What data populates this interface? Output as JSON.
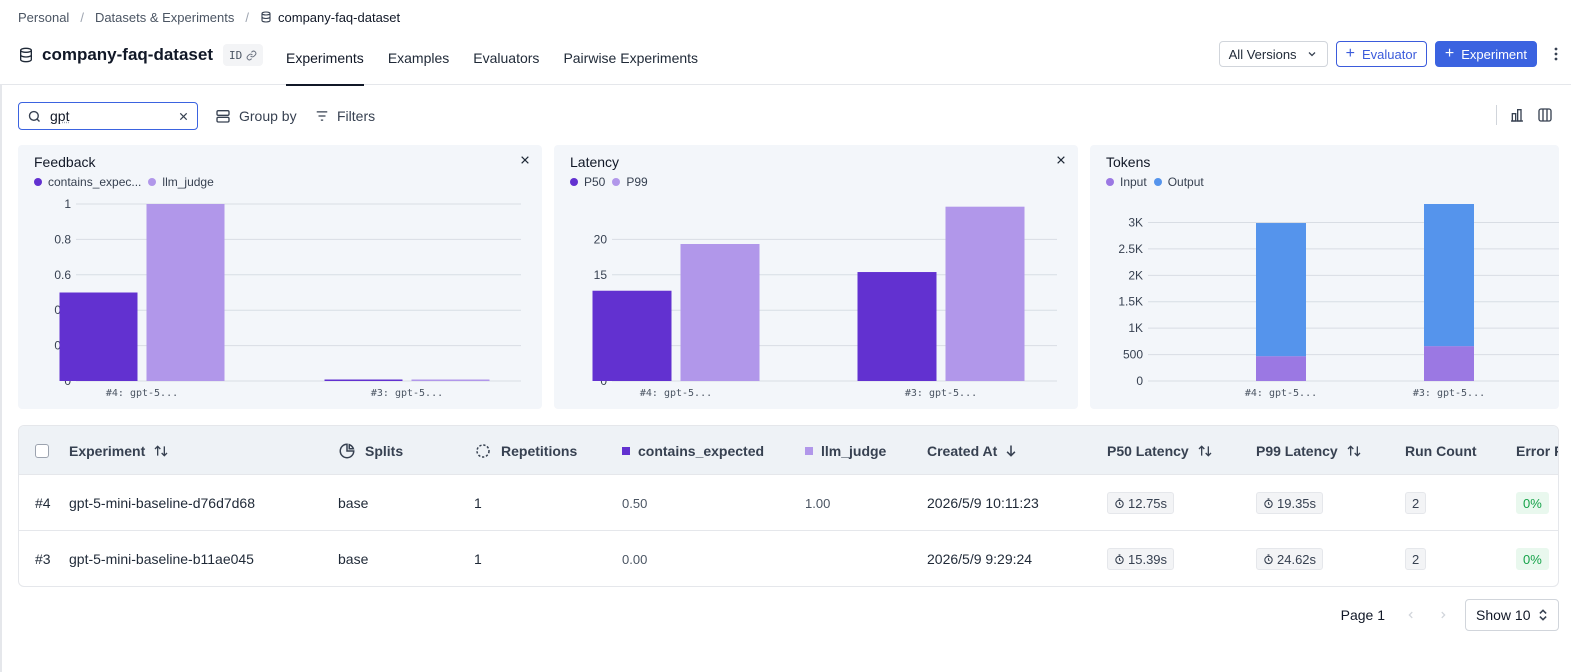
{
  "breadcrumb": {
    "items": [
      "Personal",
      "Datasets & Experiments"
    ],
    "current": "company-faq-dataset"
  },
  "header": {
    "dataset_name": "company-faq-dataset",
    "id_badge": "ID",
    "tabs": [
      "Experiments",
      "Examples",
      "Evaluators",
      "Pairwise Experiments"
    ],
    "active_tab": "Experiments",
    "versions_label": "All Versions",
    "evaluator_label": "Evaluator",
    "experiment_label": "Experiment"
  },
  "toolbar": {
    "search_value": "gpt",
    "group_by_label": "Group by",
    "filters_label": "Filters"
  },
  "colors": {
    "primary": "#3b63e0",
    "series_dark": "#6231d0",
    "series_light": "#b197ea",
    "input_purple": "#9b78e3",
    "output_blue": "#5594ec"
  },
  "chart_data": [
    {
      "type": "bar",
      "title": "Feedback",
      "categories": [
        "#4: gpt-5...",
        "#3: gpt-5..."
      ],
      "series": [
        {
          "name": "contains_expec...",
          "values": [
            0.5,
            0
          ]
        },
        {
          "name": "llm_judge",
          "values": [
            1.0,
            0
          ]
        }
      ],
      "ylim": [
        0,
        1
      ],
      "yticks": [
        0,
        0.2,
        0.4,
        0.6,
        0.8,
        1
      ],
      "ytick_labels": [
        "0",
        "0.2",
        "0.4",
        "0.6",
        "0.8",
        "1"
      ],
      "grid": true,
      "legend": "top-left"
    },
    {
      "type": "bar",
      "title": "Latency",
      "categories": [
        "#4: gpt-5...",
        "#3: gpt-5..."
      ],
      "series": [
        {
          "name": "P50",
          "values": [
            12.75,
            15.39
          ]
        },
        {
          "name": "P99",
          "values": [
            19.35,
            24.62
          ]
        }
      ],
      "ylim": [
        0,
        25
      ],
      "yticks": [
        0,
        5,
        10,
        15,
        20
      ],
      "ytick_labels": [
        "0",
        "5",
        "10",
        "15",
        "20"
      ],
      "grid": true,
      "legend": "top-left"
    },
    {
      "type": "bar",
      "stacked": true,
      "title": "Tokens",
      "categories": [
        "#4: gpt-5...",
        "#3: gpt-5..."
      ],
      "series": [
        {
          "name": "Input",
          "values": [
            470,
            660
          ]
        },
        {
          "name": "Output",
          "values": [
            2520,
            2690
          ]
        }
      ],
      "ylim": [
        0,
        3350
      ],
      "yticks": [
        0,
        500,
        1000,
        1500,
        2000,
        2500,
        3000
      ],
      "ytick_labels": [
        "0",
        "500",
        "1K",
        "1.5K",
        "2K",
        "2.5K",
        "3K"
      ],
      "grid": true,
      "legend": "top-left"
    }
  ],
  "table": {
    "headers": {
      "experiment": "Experiment",
      "splits": "Splits",
      "repetitions": "Repetitions",
      "contains_expected": "contains_expected",
      "llm_judge": "llm_judge",
      "created_at": "Created At",
      "p50": "P50 Latency",
      "p99": "P99 Latency",
      "run_count": "Run Count",
      "error_rate": "Error R"
    },
    "rows": [
      {
        "num": "#4",
        "name": "gpt-5-mini-baseline-d76d7d68",
        "split": "base",
        "reps": "1",
        "contains_expected": "0.50",
        "llm_judge": "1.00",
        "created_at": "2026/5/9 10:11:23",
        "p50": "12.75s",
        "p99": "19.35s",
        "run_count": "2",
        "error_rate": "0%"
      },
      {
        "num": "#3",
        "name": "gpt-5-mini-baseline-b11ae045",
        "split": "base",
        "reps": "1",
        "contains_expected": "0.00",
        "llm_judge": "",
        "created_at": "2026/5/9 9:29:24",
        "p50": "15.39s",
        "p99": "24.62s",
        "run_count": "2",
        "error_rate": "0%"
      }
    ]
  },
  "pagination": {
    "page_label": "Page 1",
    "show_label": "Show 10"
  }
}
